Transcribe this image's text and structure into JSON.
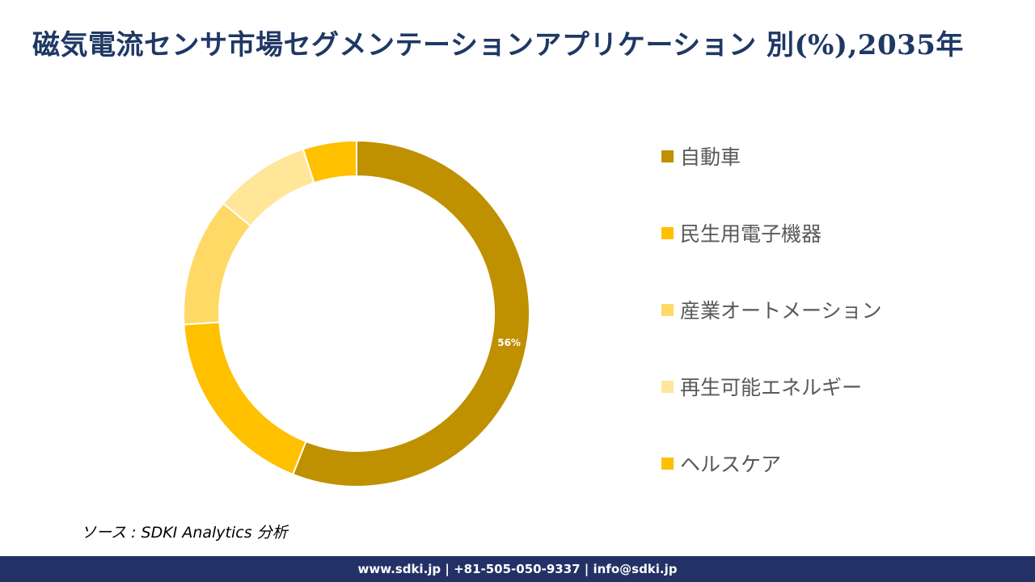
{
  "title": "磁気電流センサ市場セグメンテーションアプリケーション 別(%),2035年",
  "chart_data": {
    "type": "pie",
    "variant": "donut",
    "categories": [
      "自動車",
      "民生用電子機器",
      "産業オートメーション",
      "再生可能エネルギー",
      "ヘルスケア"
    ],
    "values": [
      56,
      18,
      12,
      9,
      5
    ],
    "colors": [
      "#bf9000",
      "#ffc000",
      "#ffd966",
      "#ffe699",
      "#ffc000"
    ],
    "data_labels": [
      "56%",
      "",
      "",
      "",
      ""
    ],
    "legend_position": "right",
    "title": "磁気電流センサ市場セグメンテーションアプリケーション 別(%),2035年"
  },
  "source": "ソース : SDKI Analytics 分析",
  "footer": "www.sdki.jp | +81-505-050-9337 | info@sdki.jp"
}
